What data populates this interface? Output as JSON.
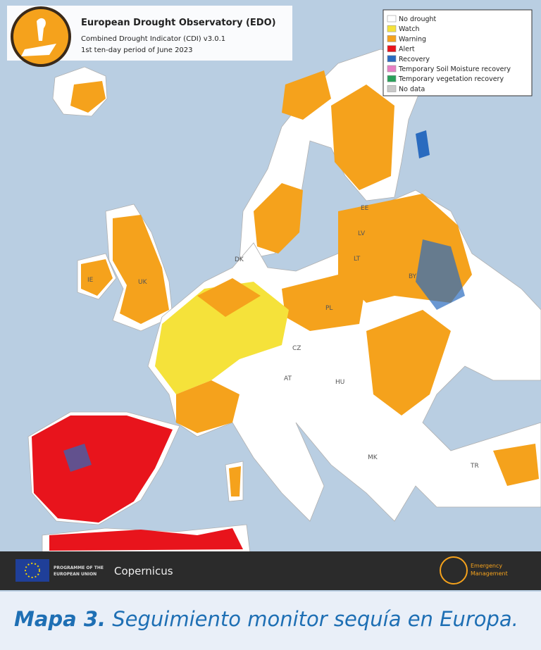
{
  "header": {
    "title": "European Drought Observatory (EDO)",
    "subtitle": "Combined Drought Indicator (CDI) v3.0.1",
    "period": "1st ten-day period of June 2023"
  },
  "legend": [
    {
      "label": "No drought",
      "color": "#ffffff"
    },
    {
      "label": "Watch",
      "color": "#f5e23a"
    },
    {
      "label": "Warning",
      "color": "#f5a21c"
    },
    {
      "label": "Alert",
      "color": "#e8141c"
    },
    {
      "label": "Recovery",
      "color": "#2a6bbf"
    },
    {
      "label": "Temporary Soil Moisture recovery",
      "color": "#e87fc4"
    },
    {
      "label": "Temporary vegetation recovery",
      "color": "#2aa05a"
    },
    {
      "label": "No data",
      "color": "#c8c8c8"
    }
  ],
  "map_labels": [
    "IE",
    "UK",
    "DK",
    "EE",
    "LV",
    "LT",
    "BY",
    "PL",
    "CZ",
    "AT",
    "HU",
    "MK",
    "TR"
  ],
  "footer": {
    "eu": [
      "PROGRAMME OF THE",
      "EUROPEAN UNION"
    ],
    "copernicus": "Copernicus",
    "ems": [
      "Emergency",
      "Management"
    ]
  },
  "caption": {
    "number": "Mapa 3.",
    "text": "Seguimiento monitor sequía en Europa."
  }
}
